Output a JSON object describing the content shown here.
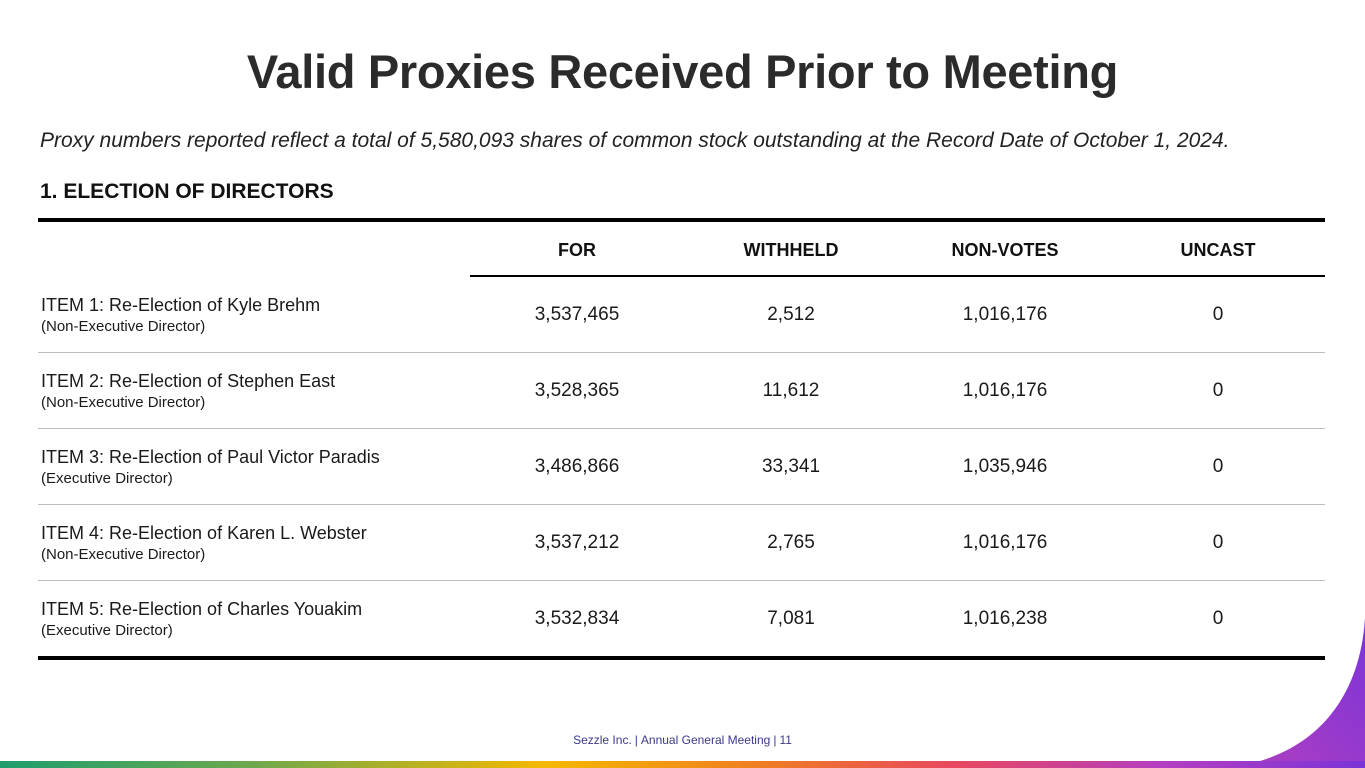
{
  "slide": {
    "title": "Valid Proxies Received Prior to Meeting",
    "subtitle": "Proxy numbers reported reflect a total of 5,580,093 shares of common stock outstanding at the Record Date of October 1, 2024.",
    "section_heading": "1. ELECTION OF DIRECTORS"
  },
  "table": {
    "columns": [
      "FOR",
      "WITHHELD",
      "NON-VOTES",
      "UNCAST"
    ],
    "rows": [
      {
        "title": "ITEM 1: Re-Election of Kyle Brehm",
        "role": "(Non-Executive Director)",
        "for": "3,537,465",
        "withheld": "2,512",
        "non_votes": "1,016,176",
        "uncast": "0"
      },
      {
        "title": "ITEM 2: Re-Election of Stephen East",
        "role": "(Non-Executive Director)",
        "for": "3,528,365",
        "withheld": "11,612",
        "non_votes": "1,016,176",
        "uncast": "0"
      },
      {
        "title": "ITEM 3: Re-Election of Paul Victor Paradis",
        "role": "(Executive Director)",
        "for": "3,486,866",
        "withheld": "33,341",
        "non_votes": "1,035,946",
        "uncast": "0"
      },
      {
        "title": "ITEM 4: Re-Election of Karen L. Webster",
        "role": "(Non-Executive Director)",
        "for": "3,537,212",
        "withheld": "2,765",
        "non_votes": "1,016,176",
        "uncast": "0"
      },
      {
        "title": "ITEM 5: Re-Election of Charles Youakim",
        "role": "(Executive Director)",
        "for": "3,532,834",
        "withheld": "7,081",
        "non_votes": "1,016,238",
        "uncast": "0"
      }
    ]
  },
  "footer": {
    "company": "Sezzle Inc.",
    "event": "Annual General Meeting",
    "page": "11"
  },
  "colors": {
    "swoosh": "#7a34d8",
    "footer_text": "#3b3a8a"
  }
}
